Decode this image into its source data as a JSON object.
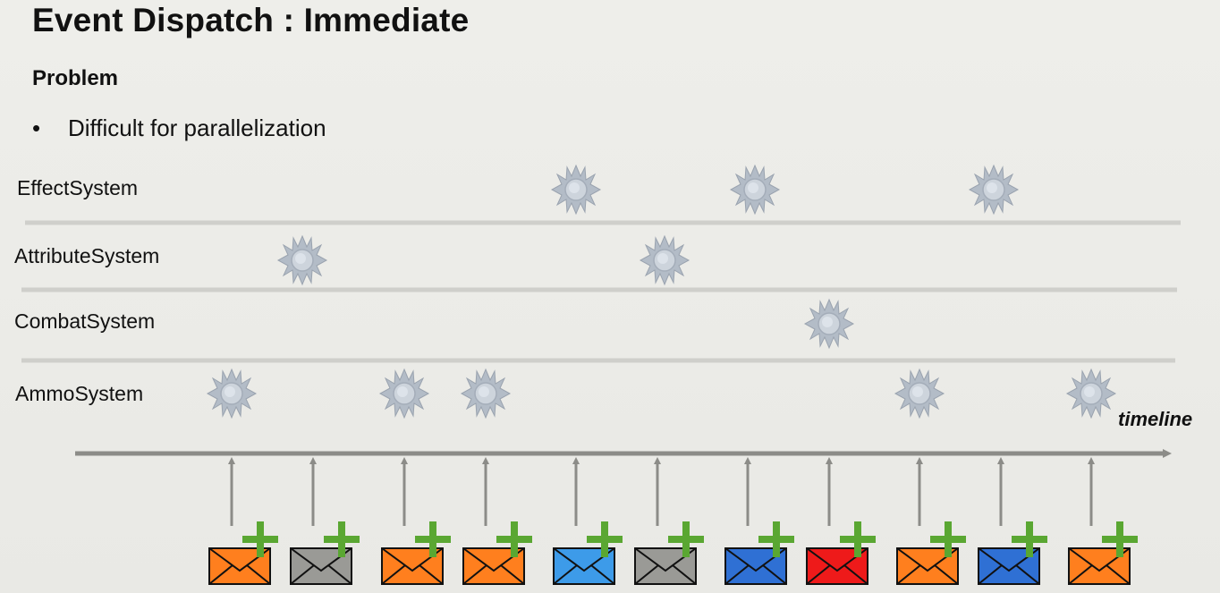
{
  "slide": {
    "title": "Event Dispatch : Immediate",
    "subtitle": "Problem",
    "bullets": [
      "Difficult for parallelization"
    ]
  },
  "diagram": {
    "systems": [
      "EffectSystem",
      "AttributeSystem",
      "CombatSystem",
      "AmmoSystem"
    ],
    "timeline_label": "timeline",
    "event_colors": {
      "orange": "#ff7f1e",
      "gray": "#9a9a96",
      "lightblue": "#3d9be9",
      "blue": "#2f70d4",
      "red": "#ee1a1a"
    },
    "events": [
      {
        "color": "orange",
        "target": "AmmoSystem"
      },
      {
        "color": "gray",
        "target": "AttributeSystem"
      },
      {
        "color": "orange",
        "target": "AmmoSystem"
      },
      {
        "color": "orange",
        "target": "AmmoSystem"
      },
      {
        "color": "lightblue",
        "target": "EffectSystem"
      },
      {
        "color": "gray",
        "target": "AttributeSystem"
      },
      {
        "color": "blue",
        "target": "EffectSystem"
      },
      {
        "color": "red",
        "target": "CombatSystem"
      },
      {
        "color": "orange",
        "target": "AmmoSystem"
      },
      {
        "color": "blue",
        "target": "EffectSystem"
      },
      {
        "color": "orange",
        "target": "AmmoSystem"
      }
    ],
    "plus_color": "#5aa732",
    "sun_color": "#b3bcc7"
  }
}
